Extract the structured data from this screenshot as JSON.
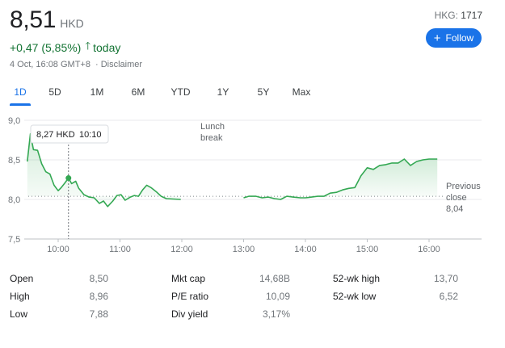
{
  "quote": {
    "price": "8,51",
    "currency": "HKD",
    "change": "+0,47 (5,85%)",
    "period": "today",
    "timestamp": "4 Oct, 16:08 GMT+8",
    "separator": "·",
    "disclaimer": "Disclaimer",
    "exchange": "HKG:",
    "symbol": "1717",
    "follow_label": "Follow"
  },
  "tabs": [
    "1D",
    "5D",
    "1M",
    "6M",
    "YTD",
    "1Y",
    "5Y",
    "Max"
  ],
  "active_tab": "1D",
  "colors": {
    "line": "#34a853",
    "up": "#137333",
    "accent": "#1a73e8"
  },
  "chart_data": {
    "type": "area",
    "title": "",
    "xlabel": "",
    "ylabel": "",
    "ylim": [
      7.5,
      9.0
    ],
    "y_ticks": [
      "9,0",
      "8,5",
      "8,0",
      "7,5"
    ],
    "y_tick_values": [
      9.0,
      8.5,
      8.0,
      7.5
    ],
    "x_ticks": [
      "10:00",
      "11:00",
      "12:00",
      "13:00",
      "14:00",
      "15:00",
      "16:00"
    ],
    "x_tick_values": [
      "10:00",
      "11:00",
      "12:00",
      "13:00",
      "14:00",
      "15:00",
      "16:00"
    ],
    "x_range": [
      "09:30",
      "16:10"
    ],
    "grid": true,
    "previous_close": 8.04,
    "previous_close_label": [
      "Previous",
      "close",
      "8,04"
    ],
    "lunch_break_label": [
      "Lunch",
      "break"
    ],
    "tooltip": {
      "price": "8,27 HKD",
      "time": "10:10",
      "x": "10:10",
      "y": 8.27
    },
    "series": [
      {
        "segments": [
          [
            [
              "09:30",
              8.48
            ],
            [
              "09:33",
              8.83
            ],
            [
              "09:36",
              8.63
            ],
            [
              "09:40",
              8.62
            ],
            [
              "09:44",
              8.45
            ],
            [
              "09:48",
              8.35
            ],
            [
              "09:52",
              8.32
            ],
            [
              "09:56",
              8.18
            ],
            [
              "10:00",
              8.11
            ],
            [
              "10:03",
              8.15
            ],
            [
              "10:06",
              8.2
            ],
            [
              "10:10",
              8.27
            ],
            [
              "10:13",
              8.2
            ],
            [
              "10:17",
              8.23
            ],
            [
              "10:20",
              8.14
            ],
            [
              "10:25",
              8.06
            ],
            [
              "10:30",
              8.03
            ],
            [
              "10:35",
              8.02
            ],
            [
              "10:40",
              7.95
            ],
            [
              "10:44",
              7.98
            ],
            [
              "10:48",
              7.91
            ],
            [
              "10:53",
              7.98
            ],
            [
              "10:57",
              8.05
            ],
            [
              "11:01",
              8.06
            ],
            [
              "11:05",
              7.99
            ],
            [
              "11:10",
              8.03
            ],
            [
              "11:14",
              8.05
            ],
            [
              "11:18",
              8.04
            ],
            [
              "11:22",
              8.12
            ],
            [
              "11:26",
              8.18
            ],
            [
              "11:30",
              8.15
            ],
            [
              "11:35",
              8.1
            ],
            [
              "11:40",
              8.04
            ],
            [
              "11:45",
              8.01
            ],
            [
              "11:59",
              8.0
            ]
          ],
          [
            [
              "13:00",
              8.02
            ],
            [
              "13:05",
              8.04
            ],
            [
              "13:12",
              8.04
            ],
            [
              "13:18",
              8.02
            ],
            [
              "13:24",
              8.03
            ],
            [
              "13:30",
              8.01
            ],
            [
              "13:36",
              8.0
            ],
            [
              "13:42",
              8.04
            ],
            [
              "13:48",
              8.03
            ],
            [
              "13:55",
              8.02
            ],
            [
              "14:00",
              8.02
            ],
            [
              "14:06",
              8.03
            ],
            [
              "14:12",
              8.04
            ],
            [
              "14:18",
              8.04
            ],
            [
              "14:24",
              8.08
            ],
            [
              "14:30",
              8.09
            ],
            [
              "14:36",
              8.12
            ],
            [
              "14:42",
              8.14
            ],
            [
              "14:48",
              8.15
            ],
            [
              "14:54",
              8.3
            ],
            [
              "15:00",
              8.4
            ],
            [
              "15:06",
              8.38
            ],
            [
              "15:12",
              8.43
            ],
            [
              "15:18",
              8.44
            ],
            [
              "15:24",
              8.46
            ],
            [
              "15:30",
              8.46
            ],
            [
              "15:36",
              8.51
            ],
            [
              "15:42",
              8.43
            ],
            [
              "15:48",
              8.48
            ],
            [
              "15:54",
              8.5
            ],
            [
              "16:00",
              8.51
            ],
            [
              "16:08",
              8.51
            ]
          ]
        ]
      }
    ]
  },
  "stats": {
    "col1": [
      {
        "label": "Open",
        "value": "8,50"
      },
      {
        "label": "High",
        "value": "8,96"
      },
      {
        "label": "Low",
        "value": "7,88"
      }
    ],
    "col2": [
      {
        "label": "Mkt cap",
        "value": "14,68B"
      },
      {
        "label": "P/E ratio",
        "value": "10,09"
      },
      {
        "label": "Div yield",
        "value": "3,17%"
      }
    ],
    "col3": [
      {
        "label": "52-wk high",
        "value": "13,70"
      },
      {
        "label": "52-wk low",
        "value": "6,52"
      }
    ]
  }
}
